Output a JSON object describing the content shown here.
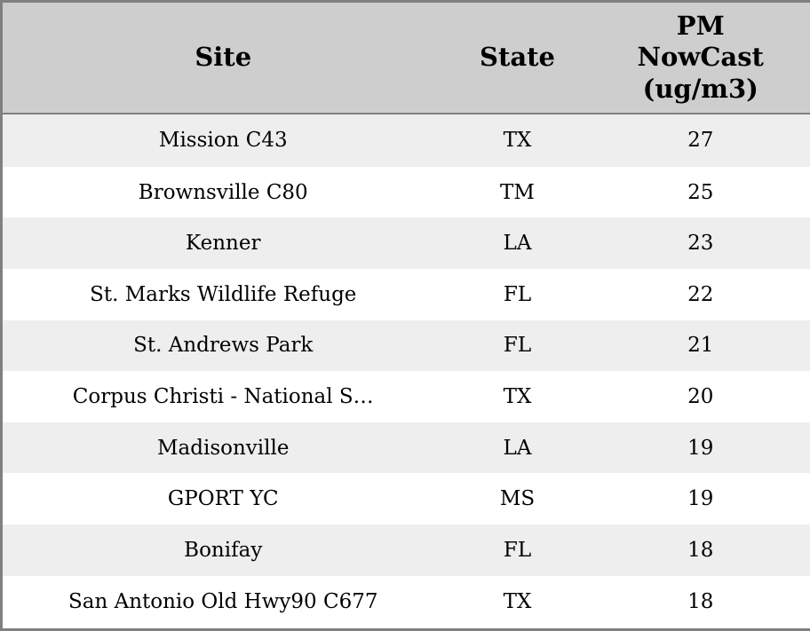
{
  "colors": {
    "header_bg": "#cecece",
    "row_alt_bg": "#eeeeee",
    "row_bg": "#ffffff",
    "border": "#808080",
    "text": "#000000"
  },
  "table": {
    "columns": {
      "site": "Site",
      "state": "State",
      "pm": "PM\nNowCast\n(ug/m3)"
    },
    "rows": [
      {
        "site": "Mission C43",
        "state": "TX",
        "pm": "27"
      },
      {
        "site": "Brownsville C80",
        "state": "TM",
        "pm": "25"
      },
      {
        "site": "Kenner",
        "state": "LA",
        "pm": "23"
      },
      {
        "site": "St. Marks Wildlife Refuge",
        "state": "FL",
        "pm": "22"
      },
      {
        "site": "St. Andrews Park",
        "state": "FL",
        "pm": "21"
      },
      {
        "site": "Corpus Christi - National S…",
        "state": "TX",
        "pm": "20"
      },
      {
        "site": "Madisonville",
        "state": "LA",
        "pm": "19"
      },
      {
        "site": "GPORT YC",
        "state": "MS",
        "pm": "19"
      },
      {
        "site": "Bonifay",
        "state": "FL",
        "pm": "18"
      },
      {
        "site": "San Antonio Old Hwy90 C677",
        "state": "TX",
        "pm": "18"
      }
    ]
  },
  "chart_data": {
    "type": "table",
    "title": "",
    "columns": [
      "Site",
      "State",
      "PM NowCast (ug/m3)"
    ],
    "rows": [
      [
        "Mission C43",
        "TX",
        27
      ],
      [
        "Brownsville C80",
        "TM",
        25
      ],
      [
        "Kenner",
        "LA",
        23
      ],
      [
        "St. Marks Wildlife Refuge",
        "FL",
        22
      ],
      [
        "St. Andrews Park",
        "FL",
        21
      ],
      [
        "Corpus Christi - National S…",
        "TX",
        20
      ],
      [
        "Madisonville",
        "LA",
        19
      ],
      [
        "GPORT YC",
        "MS",
        19
      ],
      [
        "Bonifay",
        "FL",
        18
      ],
      [
        "San Antonio Old Hwy90 C677",
        "TX",
        18
      ]
    ],
    "layout": {
      "striped_rows": true,
      "sorted_by": "PM NowCast (ug/m3) descending"
    }
  }
}
